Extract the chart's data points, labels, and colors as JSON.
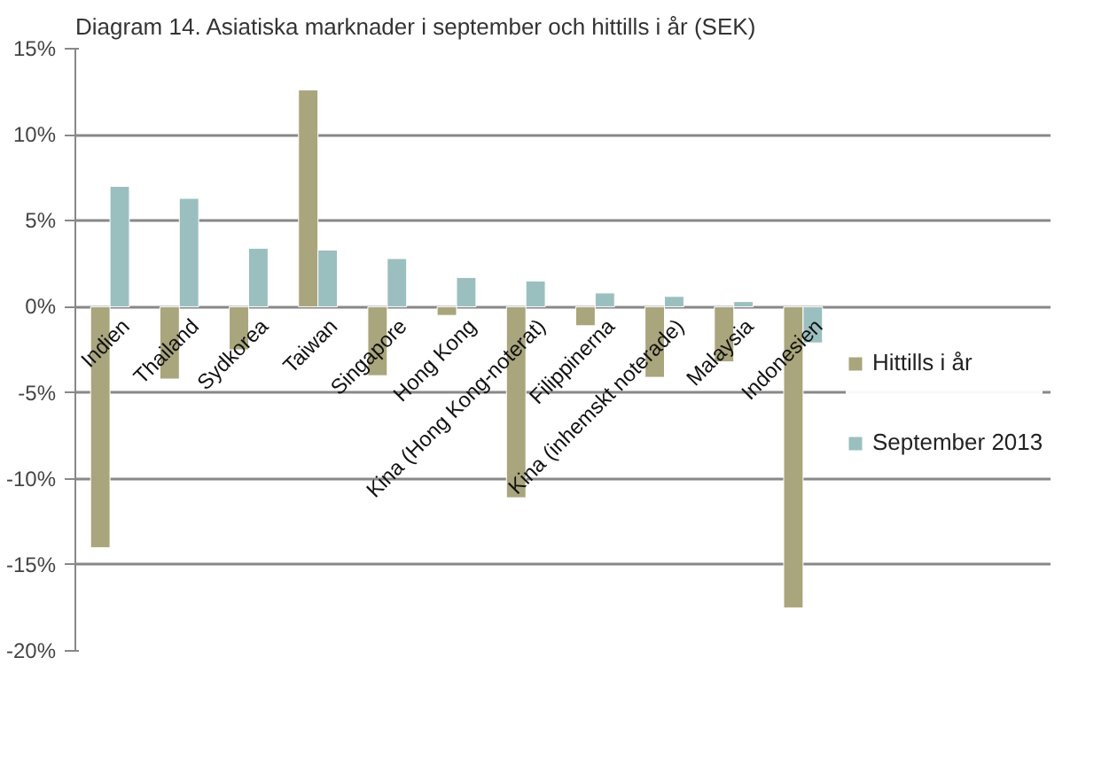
{
  "chart_data": {
    "type": "bar",
    "title": "Diagram 14. Asiatiska marknader i september och hittills i år (SEK)",
    "categories": [
      "Indien",
      "Thailand",
      "Sydkorea",
      "Taiwan",
      "Singapore",
      "Hong Kong",
      "Kina (Hong Kong-noterat)",
      "Filippinerna",
      "Kina (inhemskt noterade)",
      "Malaysia",
      "Indonesien"
    ],
    "series": [
      {
        "name": "Hittills i år",
        "color": "#a9a57c",
        "values": [
          -14.0,
          -4.2,
          -2.5,
          12.6,
          -4.0,
          -0.5,
          -11.1,
          -1.1,
          -4.1,
          -3.2,
          -17.5
        ]
      },
      {
        "name": "September 2013",
        "color": "#9bbfbf",
        "values": [
          7.0,
          6.3,
          3.4,
          3.3,
          2.8,
          1.7,
          1.5,
          0.8,
          0.6,
          0.3,
          -2.1
        ]
      }
    ],
    "ylim": [
      -20,
      15
    ],
    "yticks": [
      {
        "value": -20,
        "label": "-20%"
      },
      {
        "value": -15,
        "label": "-15%"
      },
      {
        "value": -10,
        "label": "-10%"
      },
      {
        "value": -5,
        "label": "-5%"
      },
      {
        "value": 0,
        "label": "0%"
      },
      {
        "value": 5,
        "label": "5%"
      },
      {
        "value": 10,
        "label": "10%"
      },
      {
        "value": 15,
        "label": "15%"
      }
    ],
    "grid": "y",
    "legend": "right"
  }
}
